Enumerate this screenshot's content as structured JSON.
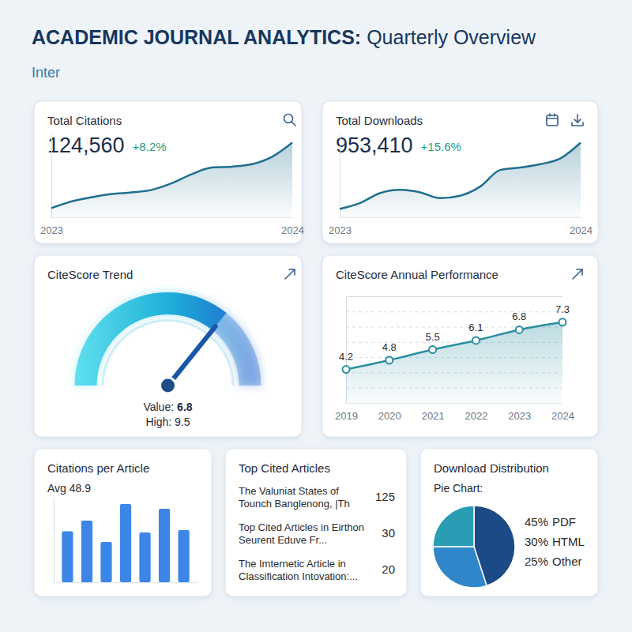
{
  "header": {
    "title": "ACADEMIC JOURNAL ANALYTICS:",
    "title_light": "Quarterly Overview",
    "subtitle": "Inter"
  },
  "chart_data": [
    {
      "type": "line",
      "title": "Total Citations",
      "kpi": "124,560",
      "change": "+8.2%",
      "categories": [
        "2023",
        null,
        null,
        null,
        null,
        null,
        null,
        null,
        null,
        null,
        null,
        null,
        "2024"
      ],
      "values": [
        11,
        19,
        24,
        28,
        30,
        33,
        41,
        52,
        60,
        61,
        64,
        73,
        90
      ],
      "ylim": [
        0,
        100
      ],
      "tick_labels": "x",
      "color": "#1f6f8f"
    },
    {
      "type": "line",
      "title": "Total Downloads",
      "kpi": "953,410",
      "change": "+15.6%",
      "categories": [
        "2023",
        null,
        null,
        null,
        null,
        null,
        null,
        null,
        null,
        null,
        null,
        null,
        "2024"
      ],
      "values": [
        10,
        17,
        29,
        33,
        30,
        23,
        26,
        37,
        57,
        60,
        64,
        71,
        90
      ],
      "ylim": [
        0,
        100
      ],
      "tick_labels": "x",
      "color": "#1f6f8f"
    },
    {
      "type": "gauge",
      "title": "CiteScore Trend",
      "value": 6.8,
      "high": 9.5,
      "value_caption": "Value:",
      "high_caption": "High:",
      "ylim": [
        0,
        9.5
      ]
    },
    {
      "type": "line",
      "title": "CiteScore Annual Performance",
      "categories": [
        "2019",
        "2020",
        "2021",
        "2022",
        "2023",
        "2024"
      ],
      "values": [
        4.2,
        4.8,
        5.5,
        6.1,
        6.8,
        7.3
      ],
      "ylim": [
        2,
        9
      ],
      "yticks": [
        3,
        4,
        5,
        6,
        7,
        8
      ],
      "grid": true,
      "data_labels": true,
      "tick_labels": "x",
      "marker": "circle",
      "color": "#2a8fa0"
    },
    {
      "type": "bar",
      "title": "Citations per Article",
      "subtitle": "Avg 48.9",
      "categories": [
        null,
        null,
        null,
        null,
        null,
        null,
        null
      ],
      "values": [
        43,
        52,
        34,
        66,
        42,
        62,
        44
      ],
      "ylim": [
        0,
        70
      ],
      "tick_labels": false,
      "color": "#3b86e6"
    },
    {
      "type": "table",
      "title": "Top Cited Articles",
      "rows": [
        [
          "The Valuniat States of Tounch Banglenong, |Th",
          125
        ],
        [
          "Top Cited Articles in Eirthon Seurent Eduve Fr...",
          30
        ],
        [
          "The Imternetic Article in Classification Intovation:...",
          20
        ]
      ]
    },
    {
      "type": "pie",
      "title": "Download Distribution",
      "subtitle": "Pie Chart:",
      "categories": [
        "PDF",
        "HTML",
        "Other"
      ],
      "values": [
        45,
        30,
        25
      ],
      "value_labels": [
        "45%",
        "30%",
        "25%"
      ],
      "colors": [
        "#1b4a86",
        "#2f86c9",
        "#2a9db5"
      ],
      "legend": "right"
    }
  ]
}
